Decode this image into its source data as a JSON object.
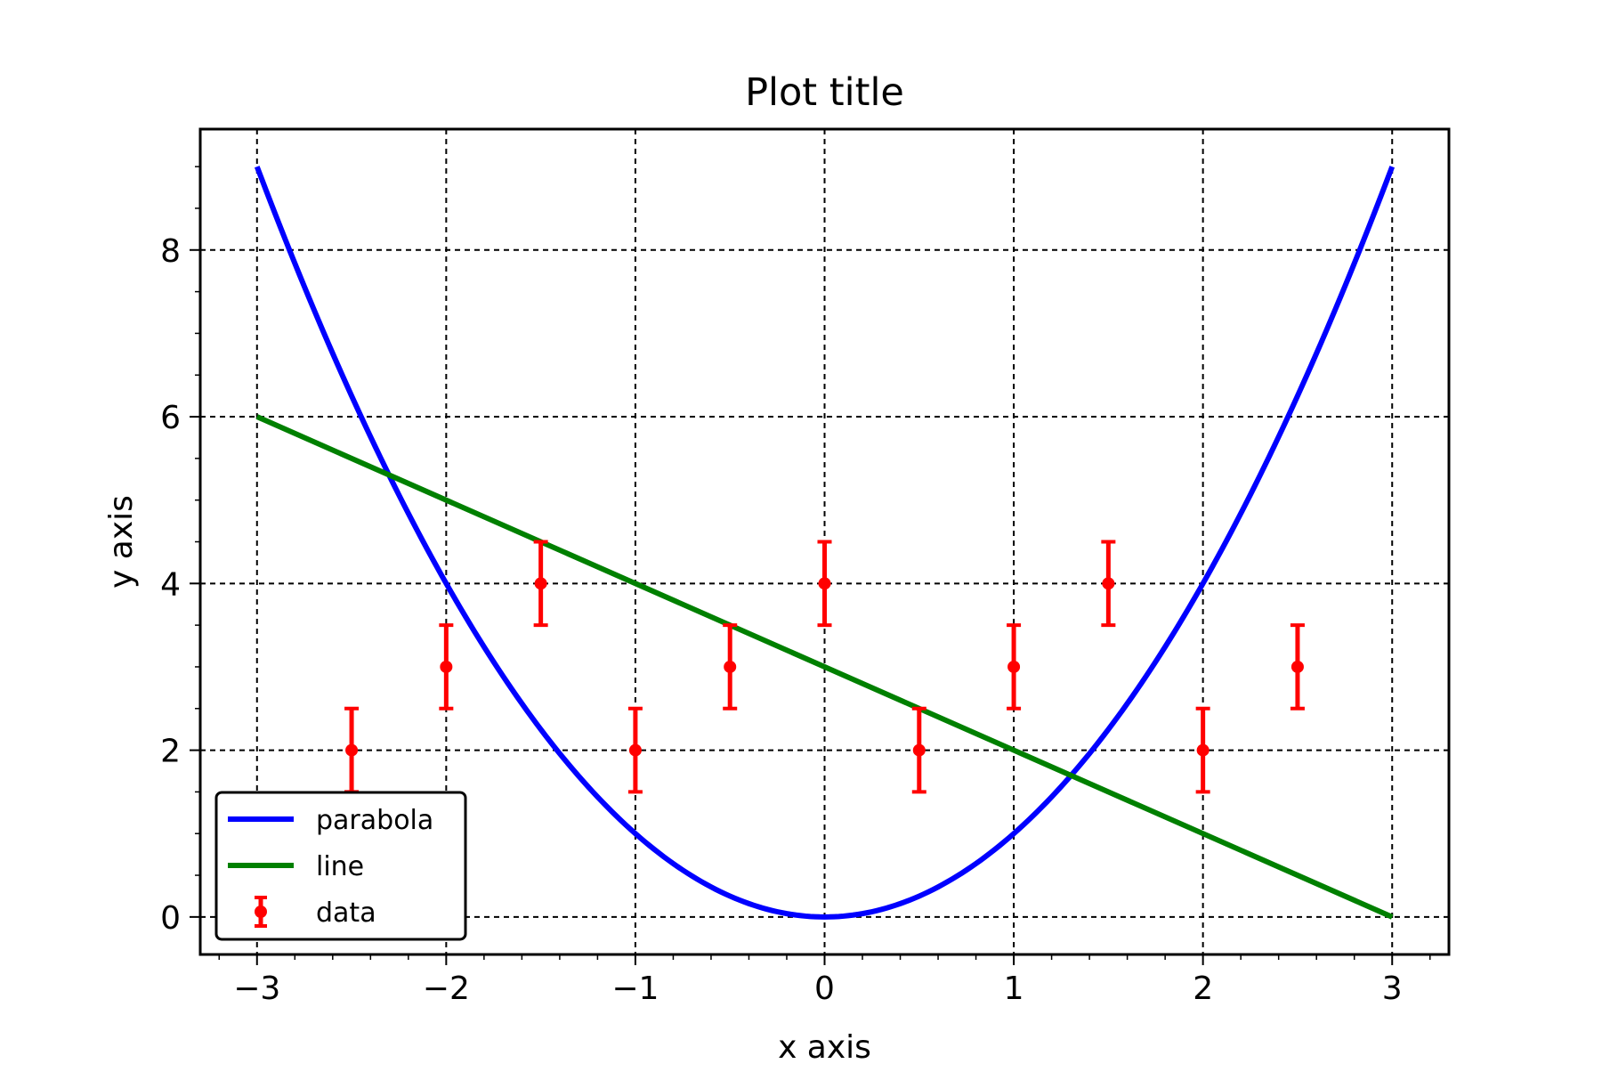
{
  "chart_data": {
    "type": "line",
    "title": "Plot title",
    "xlabel": "x axis",
    "ylabel": "y axis",
    "xlim": [
      -3.3,
      3.3
    ],
    "ylim": [
      -0.45,
      9.45
    ],
    "xticks": [
      -3,
      -2,
      -1,
      0,
      1,
      2,
      3
    ],
    "xtick_labels": [
      "−3",
      "−2",
      "−1",
      "0",
      "1",
      "2",
      "3"
    ],
    "yticks": [
      0,
      2,
      4,
      6,
      8
    ],
    "ytick_labels": [
      "0",
      "2",
      "4",
      "6",
      "8"
    ],
    "x_minor_step": 0.2,
    "y_minor_step": 0.5,
    "grid": true,
    "grid_style": "dashed",
    "legend_position": "lower left",
    "series": [
      {
        "name": "parabola",
        "kind": "line",
        "color": "#0000ff",
        "function": "x^2",
        "x_range": [
          -3,
          3
        ]
      },
      {
        "name": "line",
        "kind": "line",
        "color": "#008000",
        "x": [
          -3,
          3
        ],
        "y": [
          6,
          0
        ]
      },
      {
        "name": "data",
        "kind": "errorbar",
        "color": "#ff0000",
        "x": [
          -2.5,
          -2,
          -1.5,
          -1,
          -0.5,
          0,
          0.5,
          1,
          1.5,
          2,
          2.5
        ],
        "y": [
          2,
          3,
          4,
          2,
          3,
          4,
          2,
          3,
          4,
          2,
          3
        ],
        "yerr": 0.5
      }
    ]
  }
}
